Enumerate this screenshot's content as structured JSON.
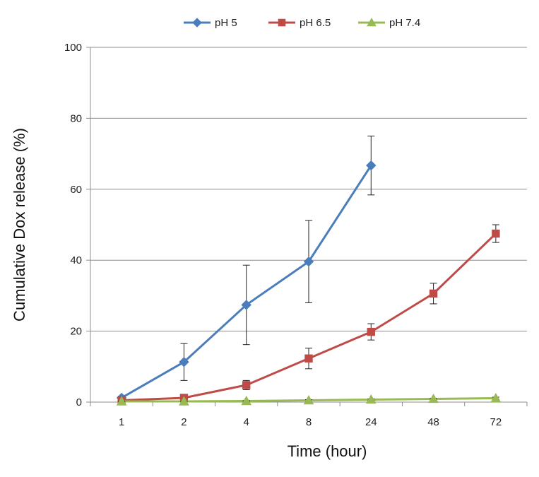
{
  "chart_data": {
    "type": "line",
    "title": "",
    "xlabel": "Time (hour)",
    "ylabel": "Cumulative Dox release (%)",
    "categories": [
      "1",
      "2",
      "4",
      "8",
      "24",
      "48",
      "72"
    ],
    "ylim": [
      0,
      100
    ],
    "yticks": [
      0,
      20,
      40,
      60,
      80,
      100
    ],
    "grid": true,
    "legend_position": "top",
    "series": [
      {
        "name": "pH 5",
        "color": "#4a7ebb",
        "marker": "diamond",
        "values": [
          1.2,
          11.3,
          27.4,
          39.6,
          66.7,
          null,
          null
        ],
        "errors": [
          0.5,
          5.2,
          11.2,
          11.6,
          8.3,
          null,
          null
        ]
      },
      {
        "name": "pH 6.5",
        "color": "#be4b48",
        "marker": "square",
        "values": [
          0.5,
          1.2,
          4.8,
          12.3,
          19.8,
          30.6,
          47.5
        ],
        "errors": [
          0.3,
          0.5,
          1.3,
          2.9,
          2.3,
          2.9,
          2.5
        ]
      },
      {
        "name": "pH 7.4",
        "color": "#98b954",
        "marker": "triangle",
        "values": [
          0.2,
          0.2,
          0.3,
          0.5,
          0.7,
          0.9,
          1.1
        ],
        "errors": [
          0.1,
          0.1,
          0.1,
          0.2,
          0.2,
          0.2,
          0.3
        ]
      }
    ]
  }
}
